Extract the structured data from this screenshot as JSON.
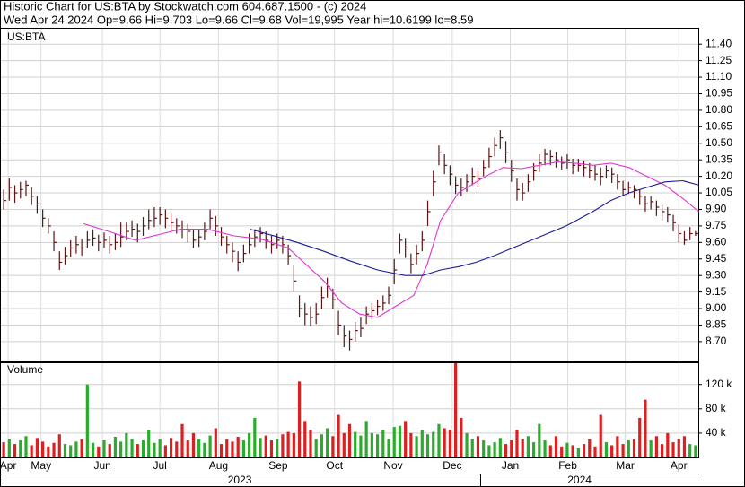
{
  "header": {
    "line1": "Historic Chart for US:BTA by Stockwatch.com 604.687.1500 - (c) 2024",
    "line2": "Wed Apr 24 2024   Op=9.66  Hi=9.703  Lo=9.66  Cl=9.68  Vol=19,995  Year hi=10.6199  lo=8.59"
  },
  "chart_data": [
    {
      "type": "ohlc",
      "symbol": "US:BTA",
      "grid": true,
      "bar_color": "#5a1414",
      "xlim": [
        0,
        125
      ],
      "ylim": [
        8.52,
        11.54
      ],
      "yticks": [
        {
          "value": 8.7,
          "label": "8.70"
        },
        8.85,
        {
          "value": 9.0,
          "label": "9.00"
        },
        9.15,
        {
          "value": 9.3,
          "label": "9.30"
        },
        9.45,
        {
          "value": 9.6,
          "label": "9.60"
        },
        9.75,
        {
          "value": 9.9,
          "label": "9.90"
        },
        10.05,
        {
          "value": 10.2,
          "label": "10.20"
        },
        10.35,
        {
          "value": 10.5,
          "label": "10.50"
        },
        10.65,
        {
          "value": 10.8,
          "label": "10.80"
        },
        10.95,
        {
          "value": 11.1,
          "label": "11.10"
        },
        11.25,
        {
          "value": 11.4,
          "label": "11.40"
        }
      ],
      "xticks": [
        {
          "value": 1.3,
          "label": "Apr"
        },
        {
          "value": 7.2,
          "label": "May"
        },
        {
          "value": 18.2,
          "label": "Jun"
        },
        {
          "value": 28.5,
          "label": "Jul"
        },
        {
          "value": 39,
          "label": "Aug"
        },
        {
          "value": 49.7,
          "label": "Sep"
        },
        {
          "value": 59.8,
          "label": "Oct"
        },
        {
          "value": 70.3,
          "label": "Nov"
        },
        {
          "value": 80.9,
          "label": "Dec"
        },
        {
          "value": 91.3,
          "label": "Jan"
        },
        {
          "value": 101.6,
          "label": "Feb"
        },
        {
          "value": 111.9,
          "label": "Mar"
        },
        {
          "value": 121.5,
          "label": "Apr"
        }
      ],
      "year_ticks": [
        {
          "value": 42.8,
          "label": "2023"
        },
        {
          "value": 103.7,
          "label": "2024"
        }
      ],
      "high": [
        10.08,
        10.18,
        10.12,
        10.15,
        10.16,
        10.1,
        10.02,
        9.9,
        9.82,
        9.7,
        9.52,
        9.56,
        9.62,
        9.66,
        9.63,
        9.7,
        9.72,
        9.67,
        9.69,
        9.66,
        9.68,
        9.78,
        9.78,
        9.8,
        9.77,
        9.83,
        9.9,
        9.92,
        9.92,
        9.9,
        9.86,
        9.82,
        9.8,
        9.77,
        9.72,
        9.72,
        9.78,
        9.9,
        9.84,
        9.74,
        9.66,
        9.6,
        9.52,
        9.58,
        9.68,
        9.72,
        9.74,
        9.7,
        9.66,
        9.68,
        9.66,
        9.58,
        9.4,
        9.12,
        9.05,
        9.02,
        9.05,
        9.2,
        9.28,
        9.18,
        8.98,
        8.85,
        8.8,
        8.88,
        8.92,
        9.02,
        9.05,
        9.08,
        9.12,
        9.2,
        9.45,
        9.68,
        9.64,
        9.5,
        9.58,
        9.7,
        9.98,
        10.25,
        10.48,
        10.4,
        10.3,
        10.2,
        10.18,
        10.22,
        10.28,
        10.25,
        10.35,
        10.46,
        10.55,
        10.62,
        10.52,
        10.35,
        10.18,
        10.14,
        10.22,
        10.32,
        10.4,
        10.45,
        10.44,
        10.42,
        10.38,
        10.4,
        10.36,
        10.36,
        10.34,
        10.32,
        10.3,
        10.28,
        10.3,
        10.28,
        10.22,
        10.16,
        10.15,
        10.12,
        10.08,
        10.02,
        10.02,
        9.98,
        9.94,
        9.92,
        9.85,
        9.76,
        9.7,
        9.74,
        9.703
      ],
      "low": [
        9.9,
        9.98,
        9.96,
        10.0,
        10.02,
        9.94,
        9.86,
        9.74,
        9.68,
        9.52,
        9.35,
        9.4,
        9.47,
        9.5,
        9.48,
        9.55,
        9.57,
        9.52,
        9.55,
        9.5,
        9.53,
        9.56,
        9.62,
        9.65,
        9.6,
        9.66,
        9.72,
        9.74,
        9.76,
        9.73,
        9.7,
        9.68,
        9.64,
        9.6,
        9.55,
        9.56,
        9.62,
        9.72,
        9.66,
        9.57,
        9.5,
        9.42,
        9.34,
        9.42,
        9.5,
        9.56,
        9.6,
        9.54,
        9.5,
        9.54,
        9.5,
        9.4,
        9.15,
        8.92,
        8.85,
        8.84,
        8.86,
        9.0,
        9.1,
        9.0,
        8.76,
        8.65,
        8.62,
        8.7,
        8.74,
        8.86,
        8.9,
        8.94,
        8.98,
        9.04,
        9.22,
        9.5,
        9.46,
        9.32,
        9.4,
        9.52,
        9.75,
        10.02,
        10.3,
        10.22,
        10.12,
        10.04,
        10.02,
        10.06,
        10.12,
        10.1,
        10.2,
        10.28,
        10.38,
        10.45,
        10.32,
        10.15,
        9.98,
        9.98,
        10.06,
        10.16,
        10.24,
        10.3,
        10.3,
        10.28,
        10.26,
        10.27,
        10.22,
        10.24,
        10.2,
        10.18,
        10.16,
        10.12,
        10.18,
        10.14,
        10.08,
        10.02,
        10.04,
        10.0,
        9.94,
        9.88,
        9.9,
        9.84,
        9.8,
        9.78,
        9.7,
        9.6,
        9.58,
        9.62,
        9.66
      ],
      "close": [
        9.98,
        10.1,
        10.05,
        10.08,
        10.12,
        10.02,
        9.95,
        9.82,
        9.75,
        9.6,
        9.42,
        9.48,
        9.55,
        9.58,
        9.55,
        9.62,
        9.64,
        9.6,
        9.62,
        9.58,
        9.6,
        9.65,
        9.7,
        9.72,
        9.7,
        9.75,
        9.8,
        9.82,
        9.85,
        9.82,
        9.78,
        9.75,
        9.72,
        9.7,
        9.62,
        9.65,
        9.7,
        9.82,
        9.75,
        9.65,
        9.58,
        9.52,
        9.42,
        9.5,
        9.58,
        9.65,
        9.68,
        9.62,
        9.58,
        9.62,
        9.58,
        9.48,
        9.25,
        9.0,
        8.95,
        8.92,
        8.95,
        9.1,
        9.2,
        9.08,
        8.85,
        8.75,
        8.72,
        8.8,
        8.82,
        8.95,
        8.98,
        9.02,
        9.05,
        9.12,
        9.35,
        9.62,
        9.55,
        9.4,
        9.5,
        9.62,
        9.88,
        10.15,
        10.42,
        10.3,
        10.22,
        10.12,
        10.1,
        10.15,
        10.2,
        10.18,
        10.28,
        10.38,
        10.48,
        10.55,
        10.42,
        10.25,
        10.08,
        10.05,
        10.15,
        10.25,
        10.32,
        10.4,
        10.38,
        10.35,
        10.32,
        10.35,
        10.3,
        10.3,
        10.28,
        10.25,
        10.22,
        10.2,
        10.25,
        10.22,
        10.15,
        10.08,
        10.1,
        10.08,
        10.02,
        9.95,
        9.97,
        9.92,
        9.88,
        9.85,
        9.78,
        9.68,
        9.62,
        9.68,
        9.68
      ],
      "lines": [
        {
          "color": "#e033d0",
          "x": [
            14.3,
            18.8,
            23.6,
            28.5,
            31.7,
            36.5,
            41.3,
            46.1,
            51,
            54.2,
            57.4,
            60.6,
            63.8,
            67,
            70.2,
            73.5,
            75.9,
            78.3,
            81.5,
            84.7,
            87.1,
            89.5,
            92.8,
            96,
            99.2,
            102.4,
            105.6,
            108.8,
            112.1,
            115.3,
            118.5,
            121.7,
            124.6
          ],
          "values": [
            9.77,
            9.7,
            9.62,
            9.68,
            9.72,
            9.72,
            9.66,
            9.63,
            9.55,
            9.4,
            9.25,
            9.05,
            8.95,
            8.92,
            9.02,
            9.12,
            9.4,
            9.8,
            10.05,
            10.15,
            10.22,
            10.28,
            10.27,
            10.3,
            10.33,
            10.32,
            10.3,
            10.32,
            10.28,
            10.2,
            10.12,
            10.0,
            9.88
          ]
        },
        {
          "color": "#1a1a9a",
          "x": [
            44.2,
            47.7,
            52.6,
            57.4,
            62.2,
            67,
            71.9,
            75.1,
            78.3,
            81.5,
            84.7,
            87.9,
            91.2,
            96,
            100.8,
            105.6,
            108.8,
            112.1,
            115.3,
            118.5,
            121.7,
            124.6
          ],
          "values": [
            9.72,
            9.67,
            9.6,
            9.52,
            9.43,
            9.35,
            9.3,
            9.3,
            9.35,
            9.38,
            9.42,
            9.48,
            9.55,
            9.65,
            9.75,
            9.88,
            9.98,
            10.05,
            10.1,
            10.15,
            10.16,
            10.12
          ]
        }
      ]
    },
    {
      "type": "volume",
      "title": "Volume",
      "up_color": "#2bab2b",
      "down_color": "#dd1f1f",
      "xlim": [
        0,
        125
      ],
      "ylim": [
        0,
        155000
      ],
      "yticks": [
        {
          "value": 40000,
          "label": "40 k"
        },
        {
          "value": 80000,
          "label": "80 k"
        },
        {
          "value": 120000,
          "label": "120 k"
        }
      ],
      "values": [
        25000,
        30000,
        22000,
        28000,
        35000,
        20000,
        32000,
        26000,
        18000,
        24000,
        38000,
        22000,
        20000,
        26000,
        30000,
        120000,
        24000,
        18000,
        28000,
        22000,
        34000,
        26000,
        40000,
        30000,
        22000,
        28000,
        45000,
        24000,
        30000,
        20000,
        32000,
        26000,
        55000,
        28000,
        40000,
        30000,
        24000,
        36000,
        48000,
        22000,
        30000,
        26000,
        34000,
        28000,
        40000,
        65000,
        32000,
        36000,
        28000,
        30000,
        38000,
        42000,
        40000,
        125000,
        60000,
        45000,
        30000,
        38000,
        48000,
        35000,
        70000,
        40000,
        55000,
        42000,
        36000,
        60000,
        40000,
        38000,
        45000,
        30000,
        50000,
        52000,
        60000,
        40000,
        35000,
        45000,
        38000,
        42000,
        55000,
        48000,
        45000,
        155000,
        65000,
        40000,
        30000,
        35000,
        28000,
        20000,
        25000,
        32000,
        22000,
        28000,
        45000,
        30000,
        35000,
        25000,
        55000,
        28000,
        20000,
        35000,
        18000,
        24000,
        20000,
        15000,
        22000,
        30000,
        18000,
        70000,
        25000,
        20000,
        35000,
        22000,
        28000,
        30000,
        65000,
        95000,
        28000,
        35000,
        22000,
        40000,
        25000,
        30000,
        35000,
        22000,
        19995
      ]
    }
  ]
}
